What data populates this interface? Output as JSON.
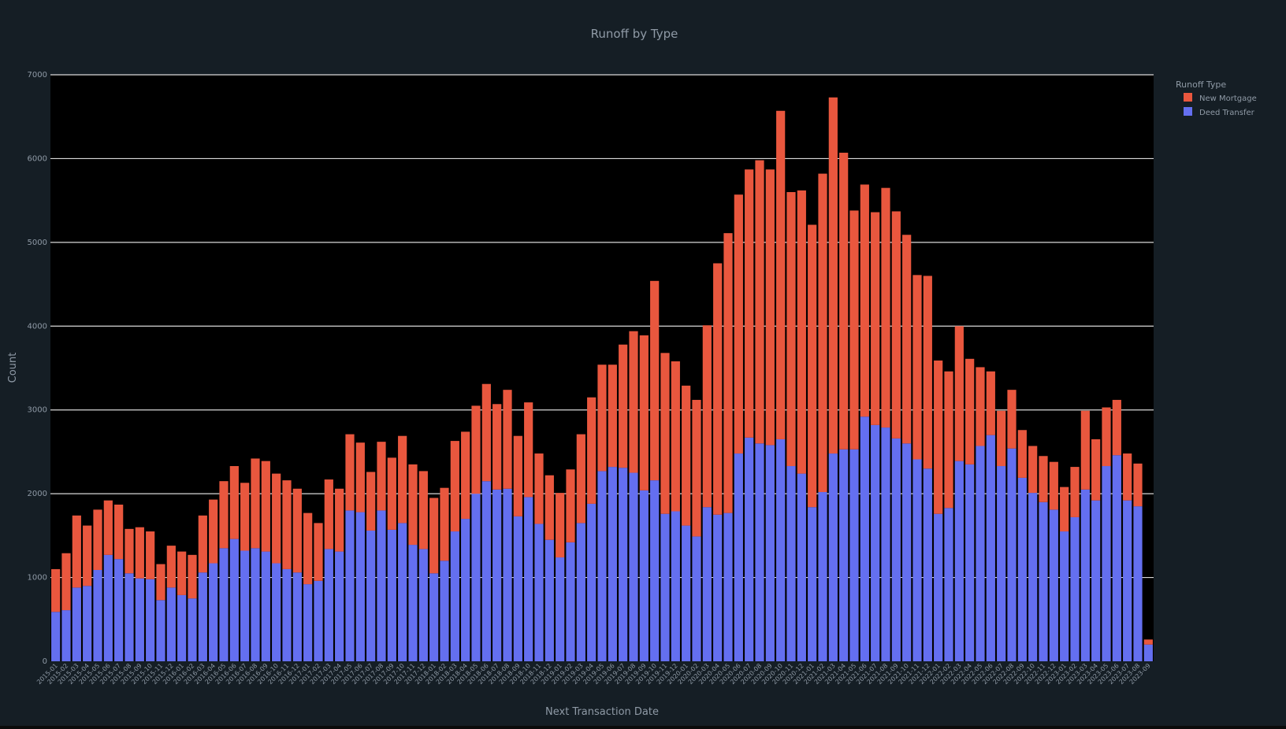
{
  "colors": {
    "paper": "#151e25",
    "plot_bg": "#000000",
    "grid": "#d9d9d9",
    "text": "#8f9aa6",
    "new_mortgage": "#e9573e",
    "deed_transfer": "#646ff0"
  },
  "chart_data": {
    "type": "bar",
    "stacked": true,
    "title": "Runoff by Type",
    "xlabel": "Next Transaction Date",
    "ylabel": "Count",
    "ylim": [
      0,
      7000
    ],
    "yticks": [
      0,
      1000,
      2000,
      3000,
      4000,
      5000,
      6000,
      7000
    ],
    "grid": true,
    "legend": {
      "title": "Runoff Type",
      "position": "top-right",
      "entries": [
        "New Mortgage",
        "Deed Transfer"
      ]
    },
    "categories": [
      "2015-01",
      "2015-02",
      "2015-03",
      "2015-04",
      "2015-05",
      "2015-06",
      "2015-07",
      "2015-08",
      "2015-09",
      "2015-10",
      "2015-11",
      "2015-12",
      "2016-01",
      "2016-02",
      "2016-03",
      "2016-04",
      "2016-05",
      "2016-06",
      "2016-07",
      "2016-08",
      "2016-09",
      "2016-10",
      "2016-11",
      "2016-12",
      "2017-01",
      "2017-02",
      "2017-03",
      "2017-04",
      "2017-05",
      "2017-06",
      "2017-07",
      "2017-08",
      "2017-09",
      "2017-10",
      "2017-11",
      "2017-12",
      "2018-01",
      "2018-02",
      "2018-03",
      "2018-04",
      "2018-05",
      "2018-06",
      "2018-07",
      "2018-08",
      "2018-09",
      "2018-10",
      "2018-11",
      "2018-12",
      "2019-01",
      "2019-02",
      "2019-03",
      "2019-04",
      "2019-05",
      "2019-06",
      "2019-07",
      "2019-08",
      "2019-09",
      "2019-10",
      "2019-11",
      "2019-12",
      "2020-01",
      "2020-02",
      "2020-03",
      "2020-04",
      "2020-05",
      "2020-06",
      "2020-07",
      "2020-08",
      "2020-09",
      "2020-10",
      "2020-11",
      "2020-12",
      "2021-01",
      "2021-02",
      "2021-03",
      "2021-04",
      "2021-05",
      "2021-06",
      "2021-07",
      "2021-08",
      "2021-09",
      "2021-10",
      "2021-11",
      "2021-12",
      "2022-01",
      "2022-02",
      "2022-03",
      "2022-04",
      "2022-05",
      "2022-06",
      "2022-07",
      "2022-08",
      "2022-09",
      "2022-10",
      "2022-11",
      "2022-12",
      "2023-01",
      "2023-02",
      "2023-03",
      "2023-04",
      "2023-05",
      "2023-06",
      "2023-07",
      "2023-08",
      "2023-09"
    ],
    "series": [
      {
        "name": "Deed Transfer",
        "values": [
          590,
          610,
          880,
          900,
          1090,
          1270,
          1220,
          1050,
          990,
          980,
          730,
          880,
          790,
          750,
          1060,
          1170,
          1350,
          1460,
          1320,
          1350,
          1310,
          1170,
          1100,
          1060,
          920,
          960,
          1340,
          1310,
          1800,
          1780,
          1560,
          1800,
          1570,
          1650,
          1390,
          1340,
          1050,
          1200,
          1550,
          1700,
          2000,
          2150,
          2050,
          2060,
          1730,
          1960,
          1640,
          1450,
          1240,
          1420,
          1650,
          1880,
          2270,
          2320,
          2310,
          2250,
          2040,
          2160,
          1760,
          1790,
          1620,
          1490,
          1840,
          1750,
          1770,
          2480,
          2670,
          2600,
          2580,
          2650,
          2330,
          2240,
          1840,
          2020,
          2480,
          2530,
          2530,
          2920,
          2820,
          2790,
          2660,
          2600,
          2410,
          2300,
          1760,
          1830,
          2390,
          2350,
          2570,
          2700,
          2330,
          2540,
          2190,
          2010,
          1900,
          1810,
          1550,
          1720,
          2050,
          1920,
          2330,
          2460,
          1920,
          1850,
          200
        ],
        "totals_note": "stacked below New Mortgage"
      },
      {
        "name": "New Mortgage",
        "values": [
          510,
          680,
          860,
          720,
          720,
          650,
          650,
          530,
          610,
          570,
          430,
          500,
          520,
          520,
          680,
          760,
          800,
          870,
          810,
          1070,
          1080,
          1070,
          1060,
          1000,
          850,
          690,
          830,
          750,
          910,
          830,
          700,
          820,
          860,
          1040,
          960,
          930,
          900,
          870,
          1080,
          1040,
          1050,
          1160,
          1020,
          1180,
          960,
          1130,
          840,
          770,
          770,
          870,
          1060,
          1270,
          1270,
          1220,
          1470,
          1690,
          1850,
          2380,
          1920,
          1790,
          1670,
          1630,
          2170,
          3000,
          3340,
          3090,
          3200,
          3380,
          3290,
          3920,
          3270,
          3380,
          3370,
          3800,
          4250,
          3540,
          2850,
          2770,
          2540,
          2860,
          2710,
          2490,
          2200,
          2300,
          1830,
          1630,
          1610,
          1260,
          940,
          760,
          660,
          700,
          570,
          560,
          550,
          570,
          530,
          600,
          940,
          730,
          700,
          660,
          560,
          510,
          60
        ]
      }
    ]
  }
}
